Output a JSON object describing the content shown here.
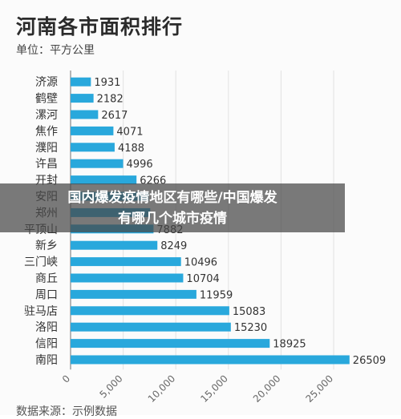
{
  "header": {
    "title": "河南各市面积排行",
    "unit": "单位：平方公里"
  },
  "overlay": {
    "text": "国内爆发疫情地区有哪些/中国爆发\n有哪几个城市疫情"
  },
  "footer": {
    "source": "数据来源：示例数据"
  },
  "colors": {
    "bar": "#29a8dc",
    "overlay": "#464646"
  },
  "chart_data": {
    "type": "bar",
    "orientation": "horizontal",
    "title": "河南各市面积排行",
    "unit": "单位：平方公里",
    "categories": [
      "济源",
      "鹤壁",
      "漯河",
      "焦作",
      "濮阳",
      "许昌",
      "开封",
      "安阳",
      "郑州",
      "平顶山",
      "新乡",
      "三门峡",
      "商丘",
      "周口",
      "驻马店",
      "洛阳",
      "信阳",
      "南阳"
    ],
    "values": [
      1931,
      2182,
      2617,
      4071,
      4188,
      4996,
      6266,
      7413,
      7567,
      7882,
      8249,
      10496,
      10704,
      11959,
      15083,
      15230,
      18925,
      26509
    ],
    "value_labels": [
      "1931",
      "2182",
      "2617",
      "4071",
      "4188",
      "4996",
      "6266",
      "",
      "",
      "7882",
      "8249",
      "10496",
      "10704",
      "11959",
      "15083",
      "15230",
      "18925",
      "26509"
    ],
    "xlim": [
      0,
      25000
    ],
    "xticks": [
      0,
      5000,
      10000,
      15000,
      20000,
      25000
    ],
    "xtick_labels": [
      "0",
      "5,000",
      "10,000",
      "15,000",
      "20,000",
      "25,000"
    ],
    "grid": true
  }
}
